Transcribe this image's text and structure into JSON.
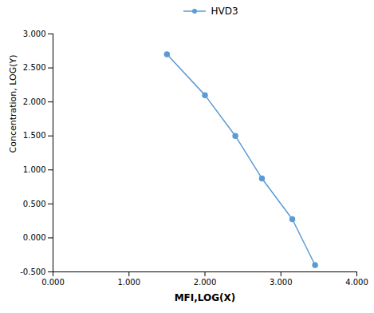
{
  "chart_data": {
    "type": "line",
    "xlabel": "MFI,LOG(X)",
    "ylabel": "Concentration, LOG(Y)",
    "x": [
      1.5,
      2.0,
      2.4,
      2.75,
      3.15,
      3.45
    ],
    "series": [
      {
        "name": "HVD3",
        "color": "#5B9BD5",
        "marker": "circle",
        "values": [
          2.7,
          2.1,
          1.5,
          0.875,
          0.275,
          -0.4
        ]
      }
    ],
    "xlim": [
      0.0,
      4.0
    ],
    "ylim": [
      -0.5,
      3.0
    ],
    "xticks": [
      {
        "value": 0,
        "label": "0.000"
      },
      {
        "value": 1,
        "label": "1.000"
      },
      {
        "value": 2,
        "label": "2.000"
      },
      {
        "value": 3,
        "label": "3.000"
      },
      {
        "value": 4,
        "label": "4.000"
      }
    ],
    "yticks": [
      {
        "value": -0.5,
        "label": "-0.500"
      },
      {
        "value": 0,
        "label": "0.000"
      },
      {
        "value": 0.5,
        "label": "0.500"
      },
      {
        "value": 1,
        "label": "1.000"
      },
      {
        "value": 1.5,
        "label": "1.500"
      },
      {
        "value": 2,
        "label": "2.000"
      },
      {
        "value": 2.5,
        "label": "2.500"
      },
      {
        "value": 3,
        "label": "3.000"
      }
    ],
    "legend": "top",
    "grid": false
  }
}
